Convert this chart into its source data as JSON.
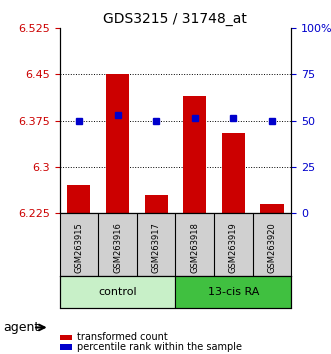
{
  "title": "GDS3215 / 31748_at",
  "samples": [
    "GSM263915",
    "GSM263916",
    "GSM263917",
    "GSM263918",
    "GSM263919",
    "GSM263920"
  ],
  "bar_values": [
    6.27,
    6.45,
    6.255,
    6.415,
    6.355,
    6.24
  ],
  "dot_values": [
    6.375,
    6.385,
    6.375,
    6.38,
    6.38,
    6.375
  ],
  "bar_base": 6.225,
  "ylim_left": [
    6.225,
    6.525
  ],
  "ylim_right": [
    0,
    100
  ],
  "yticks_left": [
    6.225,
    6.3,
    6.375,
    6.45,
    6.525
  ],
  "yticks_left_labels": [
    "6.225",
    "6.3",
    "6.375",
    "6.45",
    "6.525"
  ],
  "yticks_right": [
    0,
    25,
    50,
    75,
    100
  ],
  "yticks_right_labels": [
    "0",
    "25",
    "50",
    "75",
    "100%"
  ],
  "groups": [
    {
      "label": "control",
      "indices": [
        0,
        1,
        2
      ],
      "color": "#c8f0c8"
    },
    {
      "label": "13-cis RA",
      "indices": [
        3,
        4,
        5
      ],
      "color": "#40c040"
    }
  ],
  "bar_color": "#cc0000",
  "dot_color": "#0000cc",
  "bar_width": 0.6,
  "legend_items": [
    {
      "color": "#cc0000",
      "label": "transformed count"
    },
    {
      "color": "#0000cc",
      "label": "percentile rank within the sample"
    }
  ],
  "agent_label": "agent",
  "background_plot": "#ffffff",
  "tick_label_color_left": "#cc0000",
  "tick_label_color_right": "#0000cc"
}
